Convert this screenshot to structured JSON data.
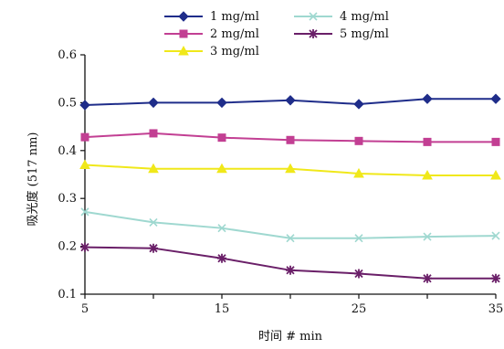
{
  "chart_data": {
    "type": "line",
    "title": "",
    "xlabel": "时间 # min",
    "ylabel": "吸光度 (517 nm)",
    "x": [
      5,
      10,
      15,
      20,
      25,
      30,
      35
    ],
    "xlim": [
      5,
      35
    ],
    "ylim": [
      0.1,
      0.6
    ],
    "xticks": [
      "5",
      "15",
      "25",
      "35"
    ],
    "yticks": [
      "0.1",
      "0.2",
      "0.3",
      "0.4",
      "0.5",
      "0.6"
    ],
    "grid": false,
    "legend_position": "top",
    "series": [
      {
        "name": "1 mg/ml",
        "values": [
          0.495,
          0.5,
          0.5,
          0.505,
          0.497,
          0.508,
          0.508
        ],
        "color": "#1f2d8a",
        "marker": "diamond"
      },
      {
        "name": "2 mg/ml",
        "values": [
          0.428,
          0.436,
          0.427,
          0.422,
          0.42,
          0.418,
          0.418
        ],
        "color": "#c23f93",
        "marker": "square"
      },
      {
        "name": "3 mg/ml",
        "values": [
          0.37,
          0.362,
          0.362,
          0.362,
          0.352,
          0.348,
          0.348
        ],
        "color": "#f0e81a",
        "marker": "triangle"
      },
      {
        "name": "4 mg/ml",
        "values": [
          0.272,
          0.25,
          0.238,
          0.217,
          0.217,
          0.22,
          0.222
        ],
        "color": "#9fd8d0",
        "marker": "x"
      },
      {
        "name": "5 mg/ml",
        "values": [
          0.198,
          0.196,
          0.175,
          0.15,
          0.143,
          0.133,
          0.133
        ],
        "color": "#6a1f68",
        "marker": "star"
      }
    ]
  }
}
